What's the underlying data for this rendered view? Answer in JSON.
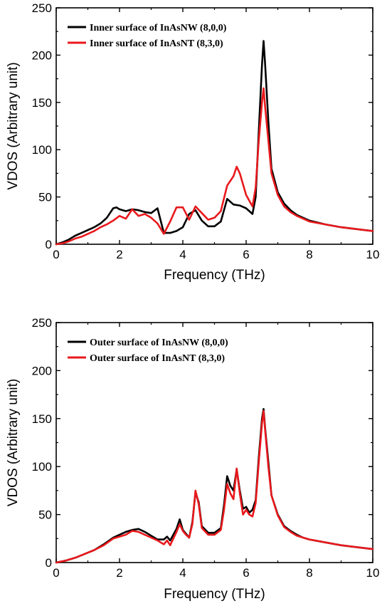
{
  "chart_data": [
    {
      "type": "line",
      "xlabel": "Frequency (THz)",
      "ylabel": "VDOS (Arbitrary unit)",
      "xlim": [
        0,
        10
      ],
      "ylim": [
        0,
        250
      ],
      "xticks": [
        "0",
        "2",
        "4",
        "6",
        "8",
        "10"
      ],
      "yticks": [
        "0",
        "50",
        "100",
        "150",
        "200",
        "250"
      ],
      "legend_position": "top-left",
      "grid": false,
      "series": [
        {
          "name": "Inner surface of InAsNW (8,0,0)",
          "color": "#000000",
          "x": [
            0,
            0.2,
            0.4,
            0.6,
            0.8,
            1.0,
            1.2,
            1.4,
            1.6,
            1.8,
            1.9,
            2.0,
            2.2,
            2.4,
            2.6,
            2.8,
            3.0,
            3.2,
            3.4,
            3.6,
            3.8,
            4.0,
            4.2,
            4.4,
            4.6,
            4.8,
            5.0,
            5.2,
            5.4,
            5.6,
            5.8,
            6.0,
            6.2,
            6.3,
            6.4,
            6.5,
            6.55,
            6.6,
            6.7,
            6.8,
            7.0,
            7.2,
            7.4,
            7.6,
            7.8,
            8.0,
            8.5,
            9.0,
            9.5,
            10.0
          ],
          "y": [
            0,
            2,
            5,
            9,
            12,
            15,
            18,
            22,
            28,
            38,
            39,
            37,
            35,
            37,
            36,
            34,
            33,
            38,
            12,
            12,
            14,
            18,
            32,
            36,
            25,
            19,
            19,
            24,
            48,
            42,
            41,
            38,
            32,
            50,
            120,
            190,
            215,
            190,
            130,
            80,
            55,
            43,
            36,
            31,
            28,
            25,
            21,
            18,
            16,
            14
          ]
        },
        {
          "name": "Inner surface of InAsNT (8,3,0)",
          "color": "#e8191d",
          "x": [
            0,
            0.2,
            0.4,
            0.6,
            0.8,
            1.0,
            1.2,
            1.4,
            1.6,
            1.8,
            2.0,
            2.2,
            2.4,
            2.6,
            2.8,
            3.0,
            3.2,
            3.4,
            3.6,
            3.8,
            4.0,
            4.2,
            4.4,
            4.6,
            4.8,
            5.0,
            5.2,
            5.4,
            5.6,
            5.7,
            5.8,
            6.0,
            6.2,
            6.3,
            6.4,
            6.5,
            6.55,
            6.6,
            6.7,
            6.8,
            7.0,
            7.2,
            7.4,
            7.6,
            7.8,
            8.0,
            8.5,
            9.0,
            9.5,
            10.0
          ],
          "y": [
            0,
            1,
            3,
            6,
            8,
            11,
            14,
            18,
            21,
            25,
            30,
            27,
            37,
            30,
            32,
            28,
            22,
            11,
            24,
            39,
            39,
            26,
            40,
            33,
            26,
            28,
            35,
            62,
            72,
            82,
            75,
            52,
            40,
            60,
            110,
            150,
            165,
            145,
            110,
            75,
            52,
            40,
            34,
            30,
            27,
            24,
            21,
            18,
            16,
            14
          ]
        }
      ]
    },
    {
      "type": "line",
      "xlabel": "Frequency (THz)",
      "ylabel": "VDOS (Arbitrary unit)",
      "xlim": [
        0,
        10
      ],
      "ylim": [
        0,
        250
      ],
      "xticks": [
        "0",
        "2",
        "4",
        "6",
        "8",
        "10"
      ],
      "yticks": [
        "0",
        "50",
        "100",
        "150",
        "200",
        "250"
      ],
      "legend_position": "top-left",
      "grid": false,
      "series": [
        {
          "name": "Outer surface of InAsNW (8,0,0)",
          "color": "#000000",
          "x": [
            0,
            0.3,
            0.6,
            0.9,
            1.2,
            1.5,
            1.8,
            2.0,
            2.2,
            2.4,
            2.6,
            2.8,
            3.0,
            3.2,
            3.4,
            3.5,
            3.6,
            3.8,
            3.9,
            4.0,
            4.1,
            4.2,
            4.3,
            4.4,
            4.5,
            4.6,
            4.8,
            5.0,
            5.2,
            5.3,
            5.4,
            5.5,
            5.6,
            5.7,
            5.8,
            5.9,
            6.0,
            6.1,
            6.2,
            6.3,
            6.4,
            6.5,
            6.55,
            6.6,
            6.7,
            6.8,
            7.0,
            7.2,
            7.4,
            7.6,
            7.8,
            8.0,
            8.5,
            9.0,
            9.5,
            10.0
          ],
          "y": [
            0,
            2,
            5,
            9,
            13,
            19,
            26,
            29,
            32,
            34,
            35,
            32,
            28,
            24,
            24,
            27,
            23,
            35,
            45,
            34,
            30,
            26,
            42,
            73,
            63,
            38,
            31,
            31,
            36,
            60,
            90,
            80,
            75,
            97,
            75,
            56,
            58,
            52,
            55,
            65,
            110,
            150,
            160,
            140,
            105,
            70,
            50,
            38,
            33,
            29,
            26,
            24,
            21,
            18,
            16,
            14
          ]
        },
        {
          "name": "Outer surface of InAsNT (8,3,0)",
          "color": "#e8191d",
          "x": [
            0,
            0.3,
            0.6,
            0.9,
            1.2,
            1.5,
            1.8,
            2.0,
            2.2,
            2.4,
            2.6,
            2.8,
            3.0,
            3.2,
            3.4,
            3.5,
            3.6,
            3.8,
            3.9,
            4.0,
            4.1,
            4.2,
            4.3,
            4.4,
            4.5,
            4.6,
            4.8,
            5.0,
            5.2,
            5.3,
            5.4,
            5.5,
            5.6,
            5.7,
            5.8,
            5.9,
            6.0,
            6.1,
            6.2,
            6.3,
            6.4,
            6.5,
            6.55,
            6.6,
            6.7,
            6.8,
            7.0,
            7.2,
            7.4,
            7.6,
            7.8,
            8.0,
            8.5,
            9.0,
            9.5,
            10.0
          ],
          "y": [
            0,
            2,
            5,
            9,
            13,
            18,
            25,
            27,
            29,
            33,
            32,
            29,
            26,
            23,
            19,
            23,
            18,
            32,
            40,
            33,
            29,
            26,
            40,
            75,
            61,
            36,
            29,
            29,
            34,
            55,
            82,
            72,
            66,
            98,
            72,
            50,
            55,
            50,
            48,
            62,
            105,
            145,
            158,
            138,
            100,
            70,
            49,
            37,
            32,
            28,
            26,
            24,
            21,
            18,
            16,
            14
          ]
        }
      ]
    }
  ]
}
